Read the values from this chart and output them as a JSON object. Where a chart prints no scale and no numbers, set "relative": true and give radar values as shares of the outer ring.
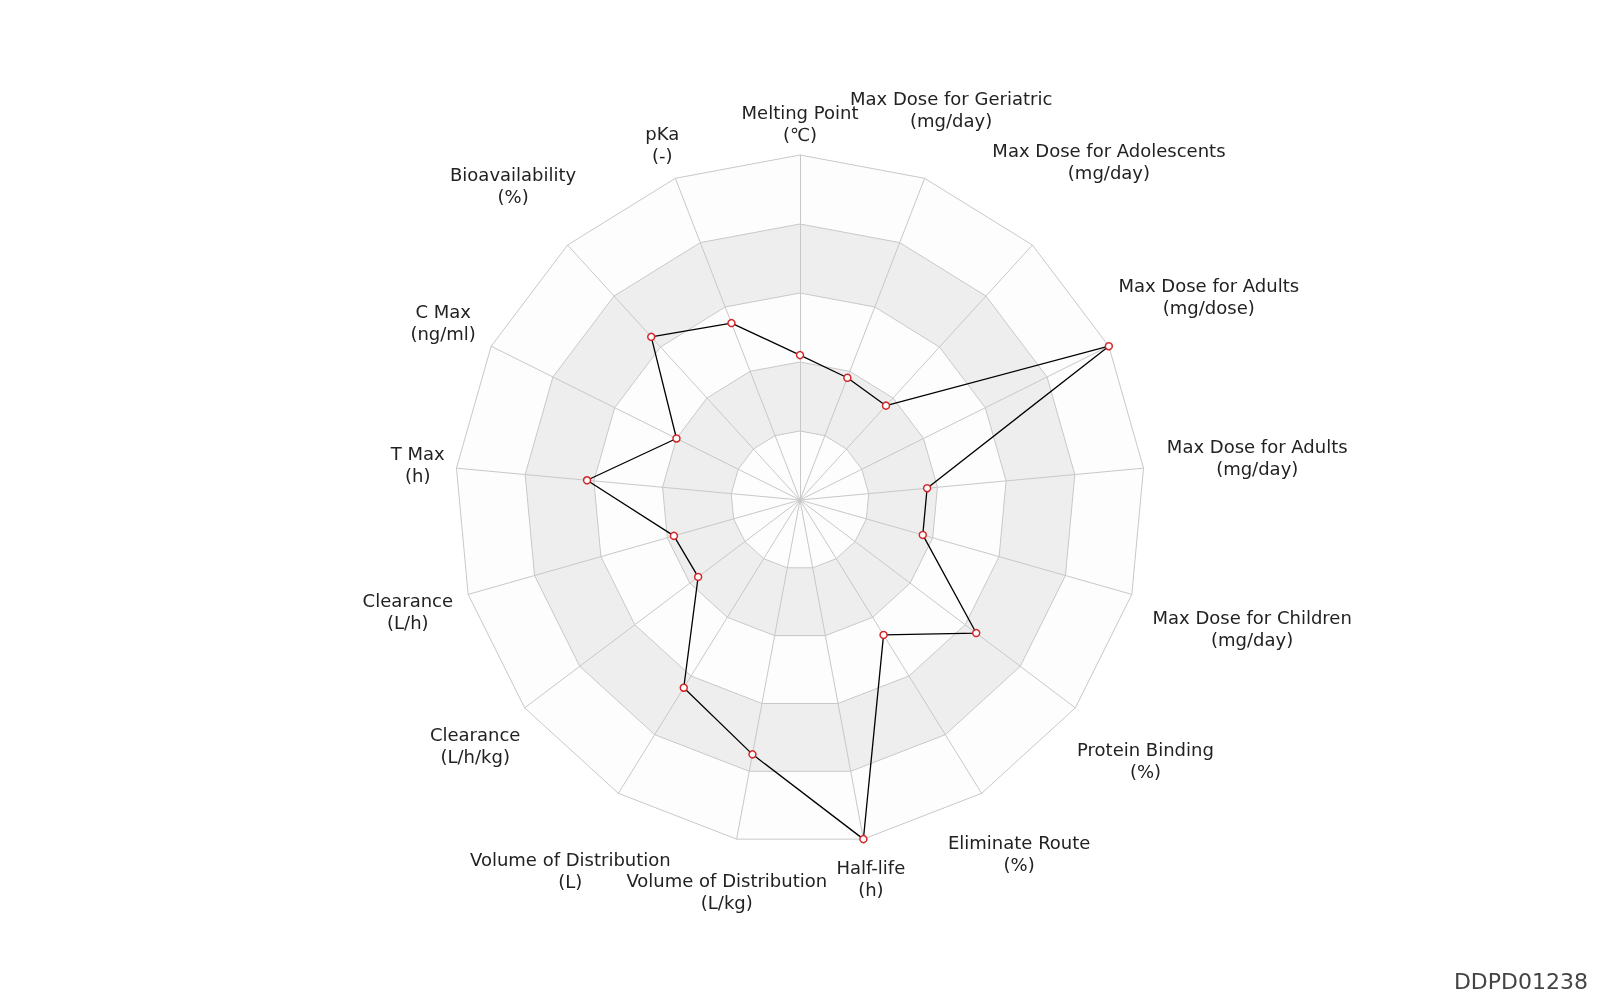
{
  "chart_data": {
    "type": "radar",
    "relative": true,
    "categories": [
      "Melting Point\n(℃)",
      "Max Dose for Geriatric\n(mg/day)",
      "Max Dose for Adolescents\n(mg/day)",
      "Max Dose for Adults\n(mg/dose)",
      "Max Dose for Adults\n(mg/day)",
      "Max Dose for Children\n(mg/day)",
      "Protein Binding\n(%)",
      "Eliminate Route\n(%)",
      "Half-life\n(h)",
      "Volume of Distribution\n(L/kg)",
      "Volume of Distribution\n(L)",
      "Clearance\n(L/h/kg)",
      "Clearance\n(L/h)",
      "T Max\n(h)",
      "C Max\n(ng/ml)",
      "Bioavailability\n(%)",
      "pKa\n(-)"
    ],
    "series": [
      {
        "color": "#000000",
        "values": [
          0.42,
          0.38,
          0.37,
          1.0,
          0.37,
          0.37,
          0.64,
          0.46,
          1.0,
          0.75,
          0.64,
          0.37,
          0.38,
          0.62,
          0.4,
          0.64,
          0.55
        ]
      }
    ],
    "marker": "circle",
    "grid": true,
    "legend": false,
    "annotations": [
      "DDPD01238"
    ]
  }
}
